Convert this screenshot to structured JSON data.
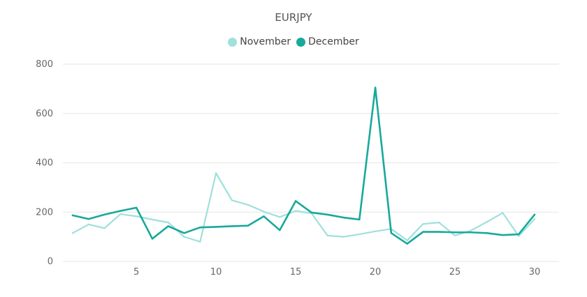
{
  "chart_data": {
    "type": "line",
    "title": "EURJPY",
    "xlabel": "",
    "ylabel": "",
    "x": [
      1,
      2,
      3,
      4,
      5,
      6,
      7,
      8,
      9,
      10,
      11,
      12,
      13,
      14,
      15,
      16,
      17,
      18,
      19,
      20,
      21,
      22,
      23,
      24,
      25,
      26,
      27,
      28,
      29,
      30
    ],
    "x_ticks": [
      5,
      10,
      15,
      20,
      25,
      30
    ],
    "y_ticks": [
      0,
      200,
      400,
      600,
      800
    ],
    "ylim": [
      0,
      800
    ],
    "xlim": [
      1,
      30
    ],
    "grid": "horizontal",
    "legend_position": "top-center",
    "series": [
      {
        "name": "November",
        "color": "#9fe0dc",
        "values": [
          115,
          150,
          135,
          192,
          183,
          170,
          158,
          100,
          80,
          358,
          248,
          230,
          202,
          180,
          205,
          195,
          105,
          100,
          110,
          122,
          132,
          85,
          152,
          158,
          105,
          125,
          160,
          197,
          103,
          172
        ]
      },
      {
        "name": "December",
        "color": "#17a99b",
        "values": [
          187,
          172,
          190,
          205,
          218,
          92,
          143,
          115,
          138,
          140,
          143,
          145,
          183,
          127,
          245,
          198,
          190,
          178,
          170,
          705,
          115,
          72,
          120,
          120,
          118,
          118,
          115,
          107,
          110,
          190
        ]
      }
    ]
  }
}
